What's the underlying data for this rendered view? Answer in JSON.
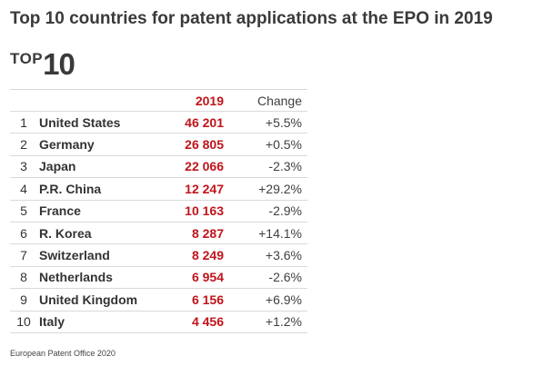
{
  "title": "Top 10 countries for patent applications at the EPO in 2019",
  "logo": {
    "top": "TOP",
    "number": "10"
  },
  "chart_data": {
    "type": "table",
    "title": "Top 10 countries for patent applications at the EPO in 2019",
    "columns": [
      "",
      "",
      "2019",
      "Change"
    ],
    "rows": [
      {
        "rank": "1",
        "country": "United States",
        "value": "46 201",
        "change": "+5.5%"
      },
      {
        "rank": "2",
        "country": "Germany",
        "value": "26 805",
        "change": "+0.5%"
      },
      {
        "rank": "3",
        "country": "Japan",
        "value": "22 066",
        "change": "-2.3%"
      },
      {
        "rank": "4",
        "country": "P.R. China",
        "value": "12 247",
        "change": "+29.2%"
      },
      {
        "rank": "5",
        "country": "France",
        "value": "10 163",
        "change": "-2.9%"
      },
      {
        "rank": "6",
        "country": "R. Korea",
        "value": "8 287",
        "change": "+14.1%"
      },
      {
        "rank": "7",
        "country": "Switzerland",
        "value": "8 249",
        "change": "+3.6%"
      },
      {
        "rank": "8",
        "country": "Netherlands",
        "value": "6 954",
        "change": "-2.6%"
      },
      {
        "rank": "9",
        "country": "United Kingdom",
        "value": "6 156",
        "change": "+6.9%"
      },
      {
        "rank": "10",
        "country": "Italy",
        "value": "4 456",
        "change": "+1.2%"
      }
    ]
  },
  "source": "European Patent Office 2020",
  "colors": {
    "accent": "#c0141b",
    "text": "#333333",
    "rule": "#d9d9d9"
  }
}
